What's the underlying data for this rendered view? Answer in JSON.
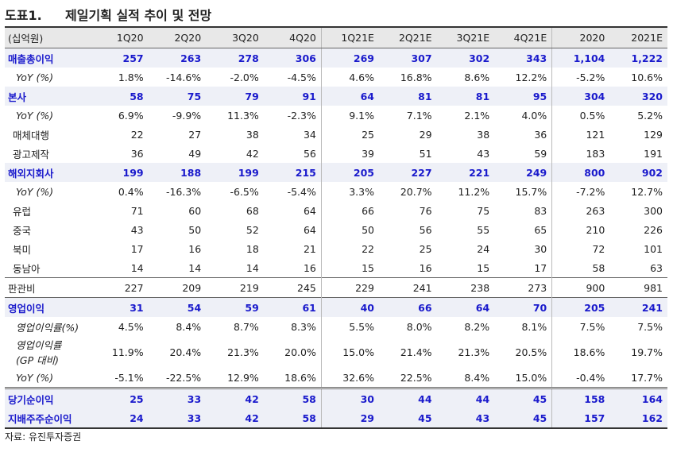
{
  "header": {
    "number": "도표1.",
    "title": "제일기획 실적 추이 및 전망"
  },
  "table": {
    "columns": [
      "(십억원)",
      "1Q20",
      "2Q20",
      "3Q20",
      "4Q20",
      "1Q21E",
      "2Q21E",
      "3Q21E",
      "4Q21E",
      "2020",
      "2021E"
    ],
    "rows": [
      [
        "매출총이익",
        "257",
        "263",
        "278",
        "306",
        "269",
        "307",
        "302",
        "343",
        "1,104",
        "1,222"
      ],
      [
        "YoY (%)",
        "1.8%",
        "-14.6%",
        "-2.0%",
        "-4.5%",
        "4.6%",
        "16.8%",
        "8.6%",
        "12.2%",
        "-5.2%",
        "10.6%"
      ],
      [
        "본사",
        "58",
        "75",
        "79",
        "91",
        "64",
        "81",
        "81",
        "95",
        "304",
        "320"
      ],
      [
        "YoY (%)",
        "6.9%",
        "-9.9%",
        "11.3%",
        "-2.3%",
        "9.1%",
        "7.1%",
        "2.1%",
        "4.0%",
        "0.5%",
        "5.2%"
      ],
      [
        "매체대행",
        "22",
        "27",
        "38",
        "34",
        "25",
        "29",
        "38",
        "36",
        "121",
        "129"
      ],
      [
        "광고제작",
        "36",
        "49",
        "42",
        "56",
        "39",
        "51",
        "43",
        "59",
        "183",
        "191"
      ],
      [
        "해외지회사",
        "199",
        "188",
        "199",
        "215",
        "205",
        "227",
        "221",
        "249",
        "800",
        "902"
      ],
      [
        "YoY (%)",
        "0.4%",
        "-16.3%",
        "-6.5%",
        "-5.4%",
        "3.3%",
        "20.7%",
        "11.2%",
        "15.7%",
        "-7.2%",
        "12.7%"
      ],
      [
        "유럽",
        "71",
        "60",
        "68",
        "64",
        "66",
        "76",
        "75",
        "83",
        "263",
        "300"
      ],
      [
        "중국",
        "43",
        "50",
        "52",
        "64",
        "50",
        "56",
        "55",
        "65",
        "210",
        "226"
      ],
      [
        "북미",
        "17",
        "16",
        "18",
        "21",
        "22",
        "25",
        "24",
        "30",
        "72",
        "101"
      ],
      [
        "동남아",
        "14",
        "14",
        "14",
        "16",
        "15",
        "16",
        "15",
        "17",
        "58",
        "63"
      ],
      [
        "판관비",
        "227",
        "209",
        "219",
        "245",
        "229",
        "241",
        "238",
        "273",
        "900",
        "981"
      ],
      [
        "영업이익",
        "31",
        "54",
        "59",
        "61",
        "40",
        "66",
        "64",
        "70",
        "205",
        "241"
      ],
      [
        "영업이익률(%)",
        "4.5%",
        "8.4%",
        "8.7%",
        "8.3%",
        "5.5%",
        "8.0%",
        "8.2%",
        "8.1%",
        "7.5%",
        "7.5%"
      ],
      [
        "영업이익률\n(GP 대비)",
        "11.9%",
        "20.4%",
        "21.3%",
        "20.0%",
        "15.0%",
        "21.4%",
        "21.3%",
        "20.5%",
        "18.6%",
        "19.7%"
      ],
      [
        "YoY (%)",
        "-5.1%",
        "-22.5%",
        "12.9%",
        "18.6%",
        "32.6%",
        "22.5%",
        "8.4%",
        "15.0%",
        "-0.4%",
        "17.7%"
      ],
      [
        "당기순이익",
        "25",
        "33",
        "42",
        "58",
        "30",
        "44",
        "44",
        "45",
        "158",
        "164"
      ],
      [
        "지배주주순이익",
        "24",
        "33",
        "42",
        "58",
        "29",
        "45",
        "43",
        "45",
        "157",
        "162"
      ]
    ]
  },
  "source": "자료: 유진투자증권"
}
